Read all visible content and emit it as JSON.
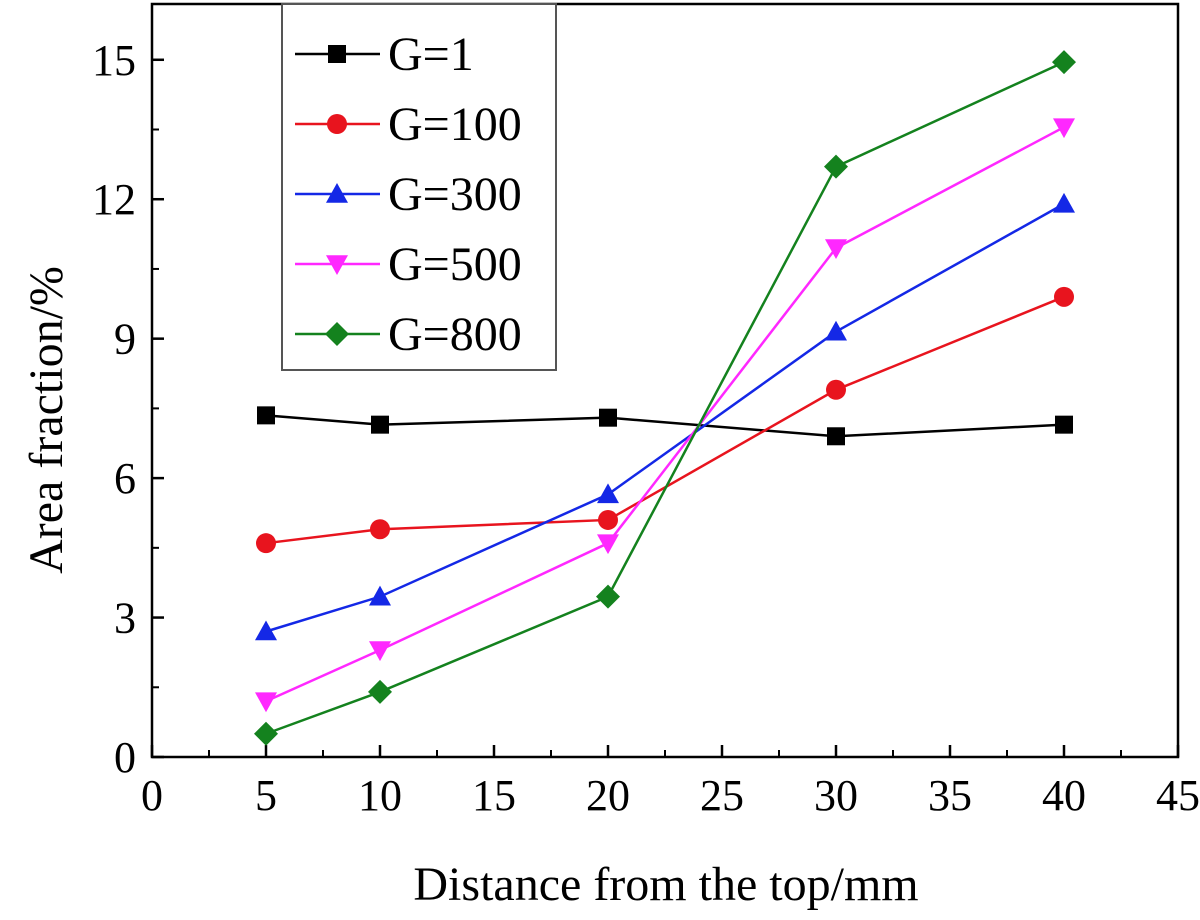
{
  "chart_data": {
    "type": "line",
    "title": "",
    "xlabel": "Distance from the top/mm",
    "ylabel": "Area fraction/%",
    "xlim": [
      0,
      45
    ],
    "ylim": [
      0,
      16.2
    ],
    "xticks": [
      0,
      5,
      10,
      15,
      20,
      25,
      30,
      35,
      40,
      45
    ],
    "yticks": [
      0,
      3,
      6,
      9,
      12,
      15
    ],
    "grid": false,
    "legend_position": "top-left",
    "x": [
      5,
      10,
      20,
      30,
      40
    ],
    "series": [
      {
        "name": "G=1",
        "color": "#000000",
        "marker": "square",
        "values": [
          7.35,
          7.15,
          7.3,
          6.9,
          7.15
        ]
      },
      {
        "name": "G=100",
        "color": "#e8141e",
        "marker": "circle",
        "values": [
          4.6,
          4.9,
          5.1,
          7.9,
          9.9
        ]
      },
      {
        "name": "G=300",
        "color": "#1428e6",
        "marker": "triangle-up",
        "values": [
          2.7,
          3.45,
          5.65,
          9.15,
          11.9
        ]
      },
      {
        "name": "G=500",
        "color": "#ff28ff",
        "marker": "triangle-down",
        "values": [
          1.2,
          2.3,
          4.6,
          10.95,
          13.55
        ]
      },
      {
        "name": "G=800",
        "color": "#14821e",
        "marker": "diamond",
        "values": [
          0.5,
          1.4,
          3.45,
          12.7,
          14.95
        ]
      }
    ]
  }
}
